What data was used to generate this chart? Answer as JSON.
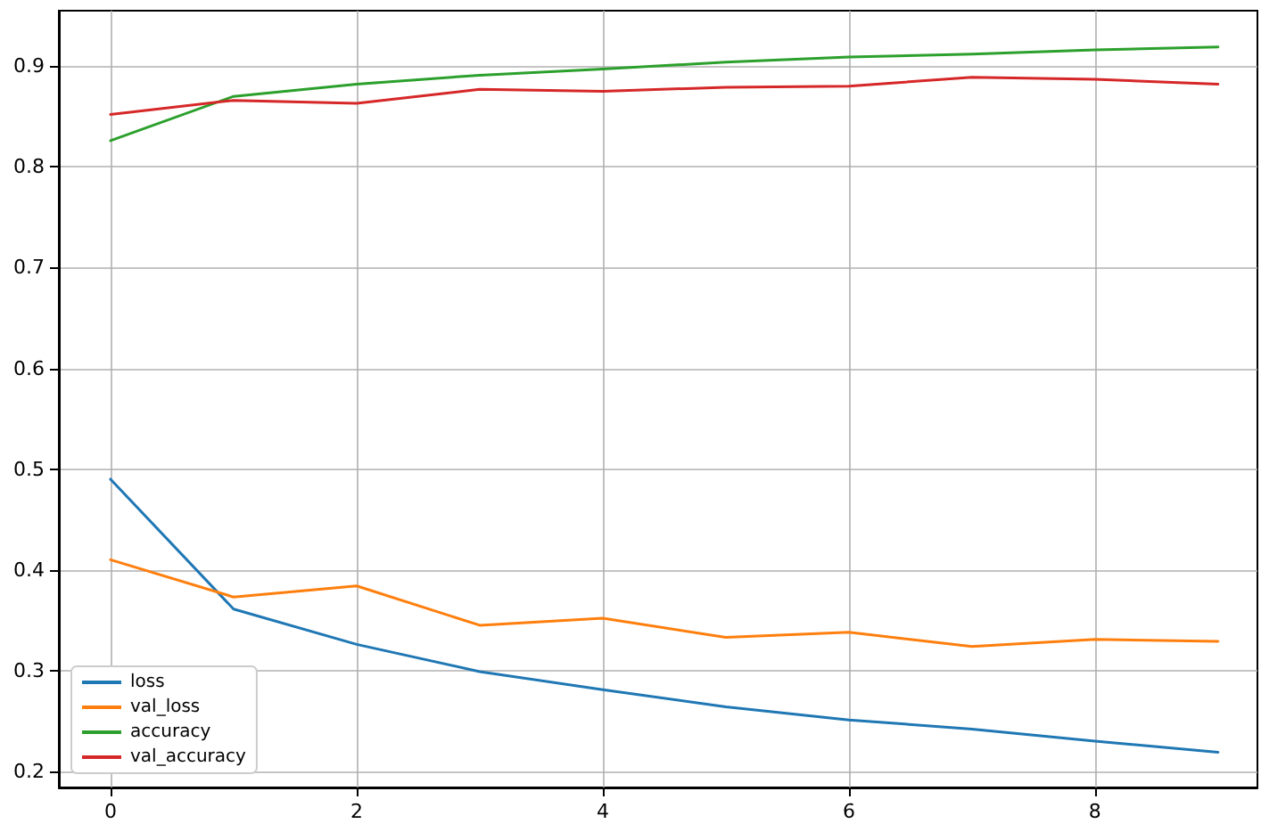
{
  "chart_data": {
    "type": "line",
    "x": [
      0,
      1,
      2,
      3,
      4,
      5,
      6,
      7,
      8,
      9
    ],
    "series": [
      {
        "name": "loss",
        "color": "#1f77b4",
        "values": [
          0.49,
          0.361,
          0.326,
          0.299,
          0.281,
          0.264,
          0.251,
          0.242,
          0.23,
          0.219
        ]
      },
      {
        "name": "val_loss",
        "color": "#ff7f0e",
        "values": [
          0.41,
          0.373,
          0.384,
          0.345,
          0.352,
          0.333,
          0.338,
          0.324,
          0.331,
          0.329
        ]
      },
      {
        "name": "accuracy",
        "color": "#2ca02c",
        "values": [
          0.826,
          0.87,
          0.882,
          0.891,
          0.897,
          0.904,
          0.909,
          0.912,
          0.916,
          0.919
        ]
      },
      {
        "name": "val_accuracy",
        "color": "#d62728",
        "values": [
          0.852,
          0.866,
          0.863,
          0.877,
          0.875,
          0.879,
          0.88,
          0.889,
          0.887,
          0.882
        ]
      }
    ],
    "xlim": [
      -0.42,
      9.32
    ],
    "xticks": [
      0,
      2,
      4,
      6,
      8
    ],
    "ylim": [
      0.184,
      0.955
    ],
    "yticks": [
      0.2,
      0.3,
      0.4,
      0.5,
      0.6,
      0.7,
      0.8,
      0.9
    ],
    "grid": true,
    "legend": "bottom left",
    "marker": "none",
    "line_style": "solid"
  }
}
